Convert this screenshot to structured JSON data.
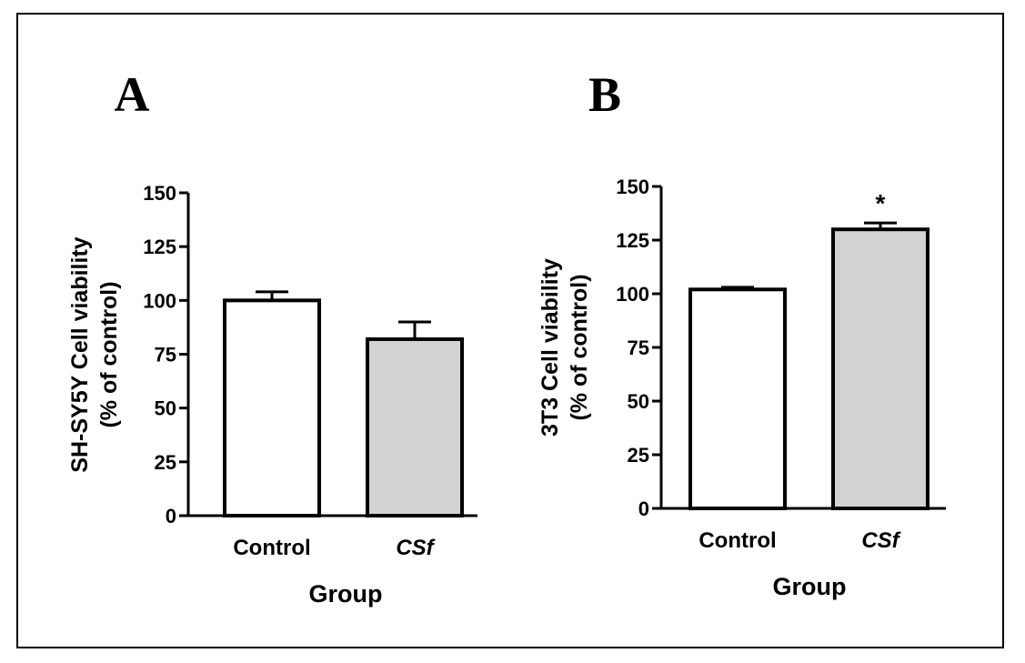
{
  "colors": {
    "control_fill": "#ffffff",
    "treatment_fill": "#d3d3d3",
    "stroke": "#000000"
  },
  "chart_data": [
    {
      "type": "bar",
      "panel_label": "A",
      "categories": [
        "Control",
        "CSf"
      ],
      "italic_categories": [
        false,
        true
      ],
      "values": [
        100,
        82
      ],
      "errors": [
        4,
        8
      ],
      "annotations": [
        "",
        ""
      ],
      "xlabel": "Group",
      "ylabel_lines": [
        "SH-SY5Y Cell viability",
        "(% of control)"
      ],
      "ylim": [
        0,
        150
      ],
      "yticks": [
        "0",
        "25",
        "50",
        "75",
        "100",
        "125",
        "150"
      ],
      "grid": false
    },
    {
      "type": "bar",
      "panel_label": "B",
      "categories": [
        "Control",
        "CSf"
      ],
      "italic_categories": [
        false,
        true
      ],
      "values": [
        102,
        130
      ],
      "errors": [
        1,
        3
      ],
      "annotations": [
        "",
        "*"
      ],
      "xlabel": "Group",
      "ylabel_lines": [
        "3T3 Cell viability",
        "(% of control)"
      ],
      "ylim": [
        0,
        150
      ],
      "yticks": [
        "0",
        "25",
        "50",
        "75",
        "100",
        "125",
        "150"
      ],
      "grid": false
    }
  ]
}
